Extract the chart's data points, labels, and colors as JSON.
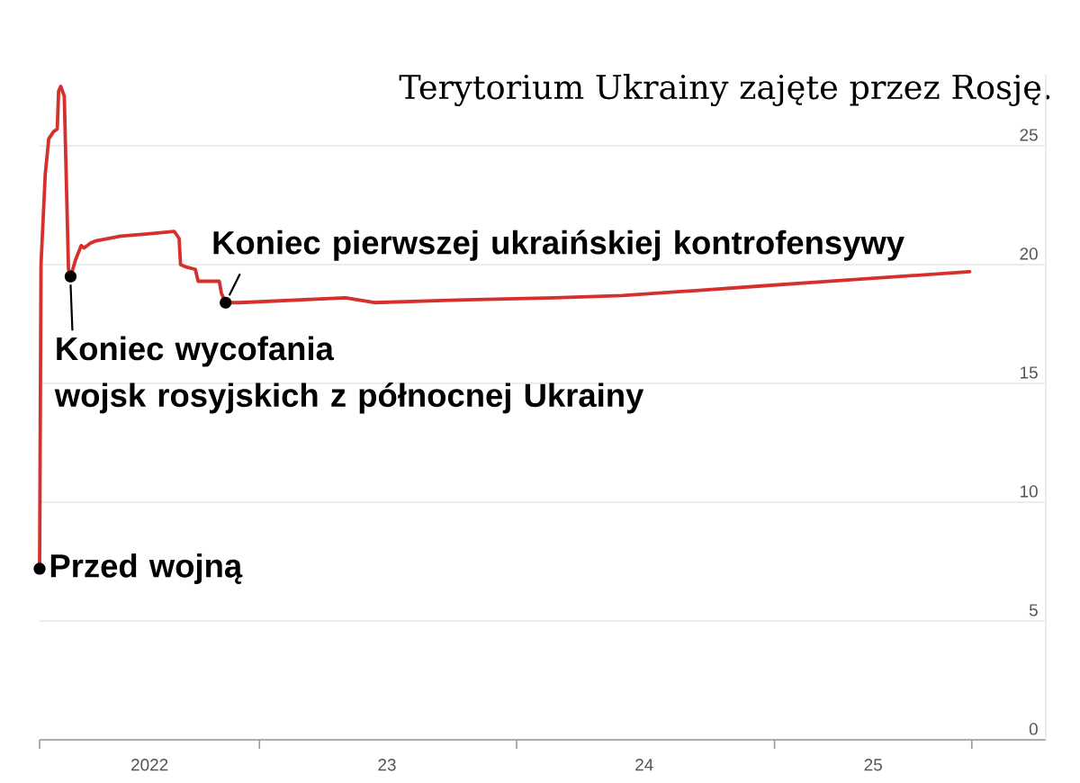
{
  "chart_data": {
    "type": "line",
    "title": "Terytorium Ukrainy zajęte przez Rosję.",
    "x": [
      "2022-02-23",
      "2022-02-25",
      "2022-03-03",
      "2022-03-08",
      "2022-03-15",
      "2022-03-20",
      "2022-03-22",
      "2022-03-25",
      "2022-03-30",
      "2022-04-05",
      "2022-04-08",
      "2022-04-15",
      "2022-04-23",
      "2022-04-27",
      "2022-05-06",
      "2022-05-14",
      "2022-06-18",
      "2022-07-30",
      "2022-09-02",
      "2022-09-09",
      "2022-09-11",
      "2022-09-19",
      "2022-10-02",
      "2022-10-06",
      "2022-11-05",
      "2022-11-08",
      "2022-11-14",
      "2022-12-04",
      "2023-05-03",
      "2023-06-13",
      "2023-09-28",
      "2024-02-24",
      "2024-05-30",
      "2024-09-07",
      "2024-12-13",
      "2025-03-22",
      "2025-06-28",
      "2025-10-05"
    ],
    "values": [
      7.2,
      20.0,
      23.8,
      25.3,
      25.6,
      25.7,
      27.3,
      27.5,
      27.1,
      19.8,
      19.5,
      20.2,
      20.8,
      20.7,
      20.9,
      21.0,
      21.2,
      21.3,
      21.4,
      21.1,
      20.0,
      19.9,
      19.8,
      19.3,
      19.3,
      18.8,
      18.4,
      18.4,
      18.6,
      18.4,
      18.5,
      18.6,
      18.7,
      18.9,
      19.1,
      19.3,
      19.5,
      19.7
    ],
    "color": "#d5302b",
    "line_style": "solid",
    "xlim": [
      "2022-02-23",
      "2026-01-21"
    ],
    "xticks": [
      {
        "value": "2022-02-23",
        "label": null
      },
      {
        "value": "2022-07-29",
        "label": "2022"
      },
      {
        "value": "2023-01-01",
        "label": null
      },
      {
        "value": "2023-07-01",
        "label": "23"
      },
      {
        "value": "2024-01-01",
        "label": null
      },
      {
        "value": "2024-06-30",
        "label": "24"
      },
      {
        "value": "2025-01-01",
        "label": null
      },
      {
        "value": "2025-05-21",
        "label": "25"
      },
      {
        "value": "2025-10-08",
        "label": null
      }
    ],
    "ylim": [
      0,
      28
    ],
    "yticks": [
      0,
      5,
      10,
      15,
      20,
      25
    ],
    "grid": "y",
    "annotations": [
      {
        "text": "Przed wojną",
        "x": "2022-02-23",
        "y": 7.2
      },
      {
        "text": "Koniec wycofania\nwojsk rosyjskich z północnej Ukrainy",
        "x": "2022-04-08",
        "y": 19.5
      },
      {
        "text": "Koniec pierwszej ukraińskiej kontrofensywy",
        "x": "2022-11-14",
        "y": 18.4
      }
    ]
  }
}
